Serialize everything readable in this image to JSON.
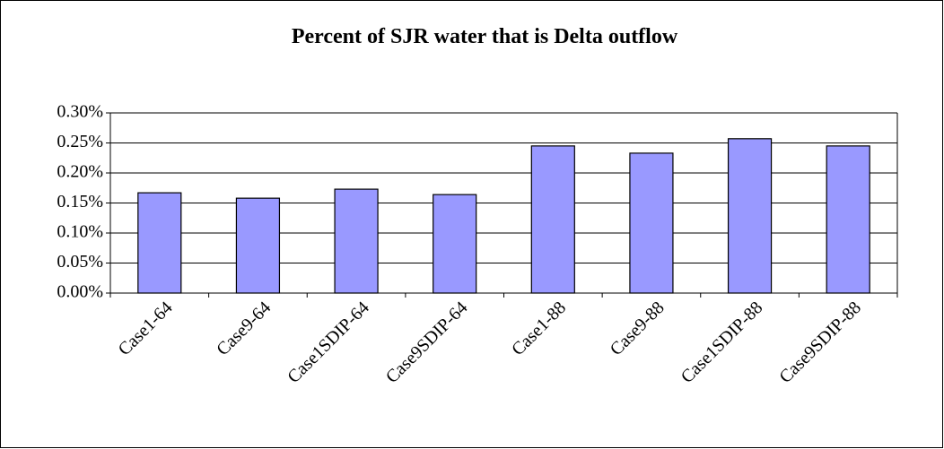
{
  "chart_data": {
    "type": "bar",
    "title": "Percent of SJR water that is Delta outflow",
    "categories": [
      "Case1-64",
      "Case9-64",
      "Case1SDIP-64",
      "Case9SDIP-64",
      "Case1-88",
      "Case9-88",
      "Case1SDIP-88",
      "Case9SDIP-88"
    ],
    "values": [
      0.167,
      0.158,
      0.173,
      0.164,
      0.245,
      0.233,
      0.257,
      0.245
    ],
    "color": "#9999ff",
    "ylim": [
      0,
      0.3
    ],
    "yticks": [
      {
        "value": 0,
        "label": "0.00%"
      },
      {
        "value": 0.05,
        "label": "0.05%"
      },
      {
        "value": 0.1,
        "label": "0.10%"
      },
      {
        "value": 0.15,
        "label": "0.15%"
      },
      {
        "value": 0.2,
        "label": "0.20%"
      },
      {
        "value": 0.25,
        "label": "0.25%"
      },
      {
        "value": 0.3,
        "label": "0.30%"
      }
    ],
    "grid": true
  }
}
